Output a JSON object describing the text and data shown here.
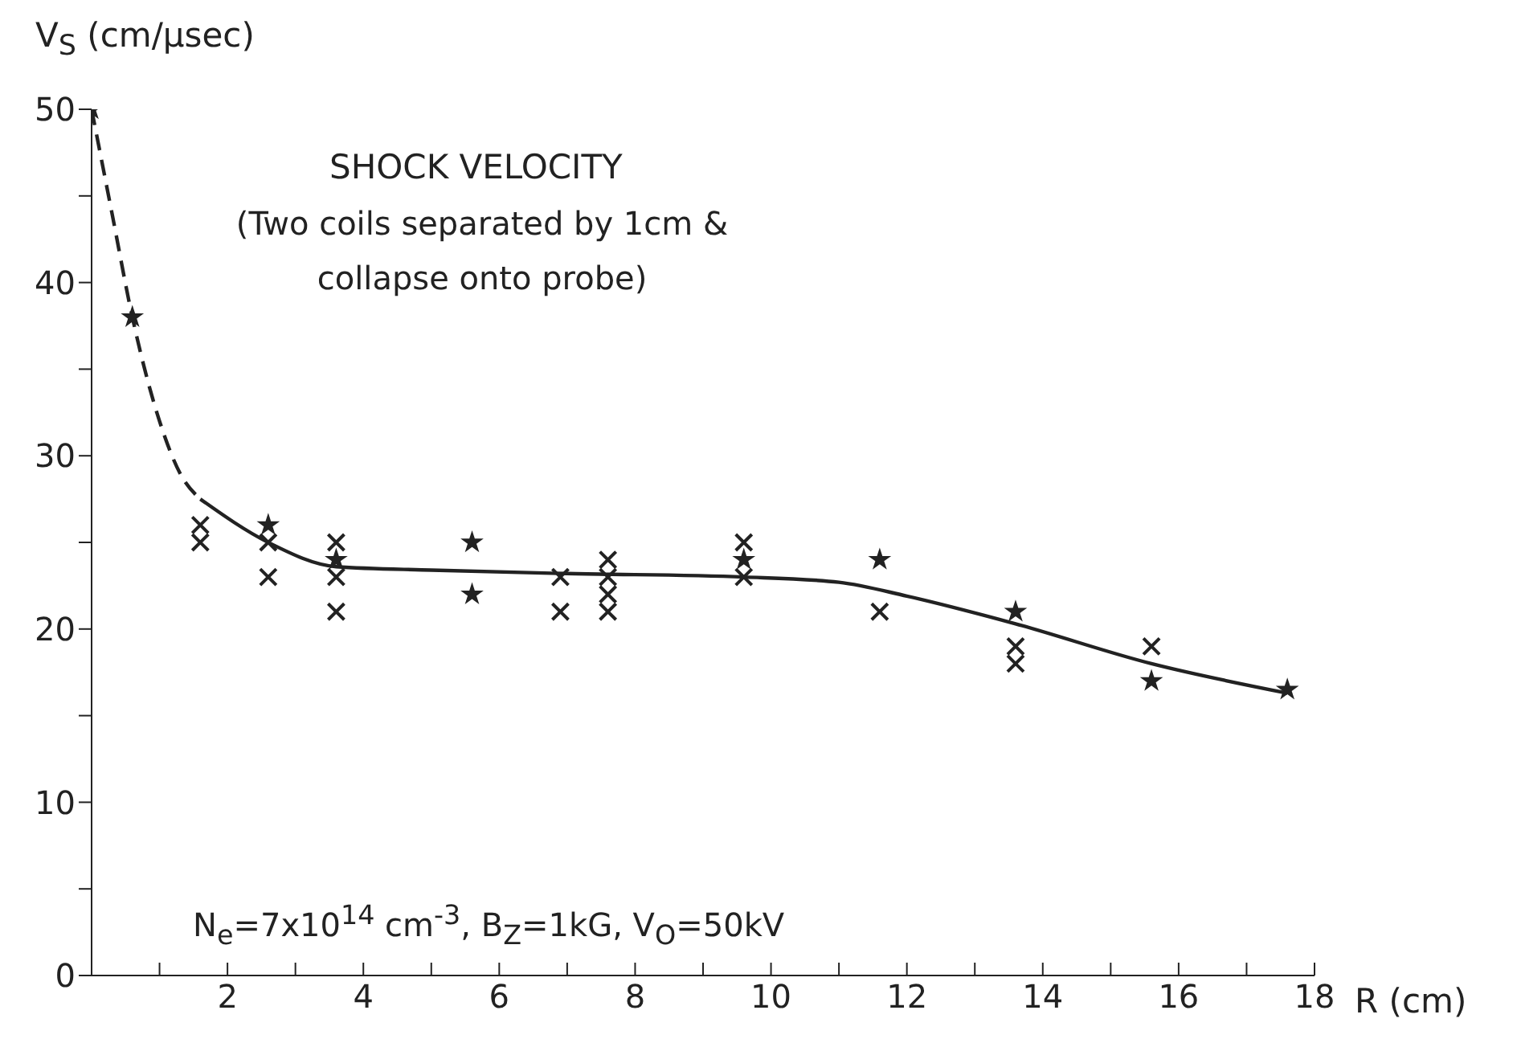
{
  "chart_data": {
    "type": "scatter",
    "title": "SHOCK VELOCITY",
    "subtitle": "(Two coils separated by 1cm & collapse onto probe)",
    "xlabel": "R (cm)",
    "ylabel": "V$_{S}$ (cm/μsec)",
    "annotations": [
      "N$_{e}$=7x10$^{14}$ cm$^{-3}$, B$_{Z}$=1kG, V$_{O}$=50kV"
    ],
    "xlim": [
      0,
      18
    ],
    "ylim": [
      0,
      50
    ],
    "xticks": [
      {
        "value": 1,
        "label": null
      },
      2,
      {
        "value": 3,
        "label": null
      },
      4,
      {
        "value": 5,
        "label": null
      },
      6,
      {
        "value": 7,
        "label": null
      },
      8,
      {
        "value": 9,
        "label": null
      },
      10,
      {
        "value": 11,
        "label": null
      },
      12,
      {
        "value": 13,
        "label": null
      },
      14,
      {
        "value": 15,
        "label": null
      },
      16,
      {
        "value": 17,
        "label": null
      },
      18
    ],
    "yticks": [
      0,
      {
        "value": 5,
        "label": null
      },
      10,
      {
        "value": 15,
        "label": null
      },
      20,
      {
        "value": 25,
        "label": null
      },
      30,
      {
        "value": 35,
        "label": null
      },
      40,
      {
        "value": 45,
        "label": null
      },
      50
    ],
    "series": [
      {
        "type": "scatter",
        "marker": "star",
        "color": "#222222",
        "x": [
          0,
          0.6,
          2.6,
          3.6,
          5.6,
          5.6,
          9.6,
          11.6,
          13.6,
          15.6,
          17.6
        ],
        "values": [
          50,
          38,
          26,
          24,
          25,
          22,
          24,
          24,
          21,
          17,
          16.5
        ]
      },
      {
        "type": "scatter",
        "marker": "cross",
        "color": "#222222",
        "x": [
          1.6,
          1.6,
          2.6,
          2.6,
          3.6,
          3.6,
          3.6,
          6.9,
          6.9,
          7.6,
          7.6,
          7.6,
          7.6,
          9.6,
          9.6,
          11.6,
          13.6,
          13.6,
          15.6
        ],
        "values": [
          26,
          25,
          25,
          23,
          25,
          23,
          21,
          23,
          21,
          24,
          23,
          22,
          21,
          25,
          23,
          21,
          19,
          18,
          19
        ]
      },
      {
        "type": "line",
        "line_style": "dashed",
        "marker": "none",
        "color": "#222222",
        "x": [
          0,
          0.3,
          0.6,
          1,
          1.3,
          1.6
        ],
        "values": [
          50,
          44,
          38,
          32,
          29,
          27.5
        ]
      },
      {
        "type": "line",
        "line_style": "solid",
        "marker": "none",
        "color": "#222222",
        "x": [
          1.6,
          2.6,
          3.6,
          5,
          7,
          9.6,
          11,
          12,
          13.6,
          15.6,
          17.6
        ],
        "values": [
          27.5,
          25,
          23.6,
          23.4,
          23.2,
          23,
          22.7,
          21.9,
          20.3,
          18,
          16.3
        ]
      }
    ]
  }
}
